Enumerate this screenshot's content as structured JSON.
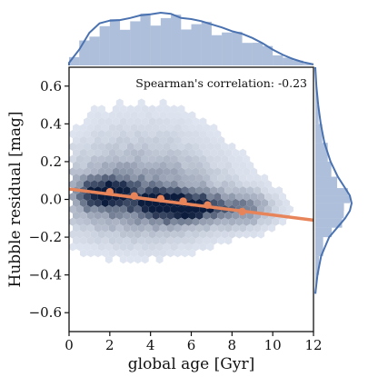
{
  "chart_data": {
    "type": "scatter",
    "subtype": "hexbin-jointplot",
    "xlabel": "global age [Gyr]",
    "ylabel": "Hubble residual [mag]",
    "xlim": [
      0,
      12
    ],
    "ylim": [
      -0.7,
      0.7
    ],
    "xticks": [
      0,
      2,
      4,
      6,
      8,
      10,
      12
    ],
    "xtick_labels": [
      "0",
      "2",
      "4",
      "6",
      "8",
      "10",
      "12"
    ],
    "yticks": [
      -0.6,
      -0.4,
      -0.2,
      0.0,
      0.2,
      0.4,
      0.6
    ],
    "ytick_labels": [
      "−0.6",
      "−0.4",
      "−0.2",
      "0.0",
      "0.2",
      "0.4",
      "0.6"
    ],
    "annotation": "Spearman's correlation: -0.23",
    "grid": false,
    "hexbin_color": "#2c5aa0",
    "fit_line": {
      "color": "#e8845a",
      "x": [
        0,
        12
      ],
      "y": [
        0.055,
        -0.11
      ]
    },
    "binned_means": {
      "color": "#e8845a",
      "x": [
        2.0,
        3.2,
        4.5,
        5.6,
        6.8,
        8.5
      ],
      "y": [
        0.04,
        0.018,
        0.004,
        -0.01,
        -0.03,
        -0.065
      ]
    },
    "marginal_x": {
      "color": "#4a72b0",
      "kde_x": [
        0,
        0.5,
        1,
        1.5,
        2,
        2.5,
        3,
        3.5,
        4,
        4.5,
        5,
        5.5,
        6,
        6.5,
        7,
        7.5,
        8,
        8.5,
        9,
        9.5,
        10,
        10.5,
        11,
        11.5,
        12
      ],
      "kde_y": [
        0.05,
        0.3,
        0.62,
        0.8,
        0.85,
        0.86,
        0.9,
        0.95,
        0.97,
        1.0,
        0.98,
        0.9,
        0.88,
        0.84,
        0.78,
        0.72,
        0.65,
        0.6,
        0.52,
        0.42,
        0.3,
        0.2,
        0.12,
        0.06,
        0.02
      ]
    },
    "marginal_y": {
      "color": "#4a72b0",
      "kde_y": [
        0.7,
        0.6,
        0.5,
        0.4,
        0.3,
        0.2,
        0.12,
        0.06,
        0.02,
        -0.02,
        -0.06,
        -0.1,
        -0.15,
        -0.2,
        -0.3,
        -0.4,
        -0.5
      ],
      "kde_x": [
        0.0,
        0.03,
        0.08,
        0.15,
        0.25,
        0.42,
        0.62,
        0.82,
        0.95,
        1.0,
        0.95,
        0.82,
        0.6,
        0.38,
        0.16,
        0.06,
        0.0
      ]
    }
  }
}
